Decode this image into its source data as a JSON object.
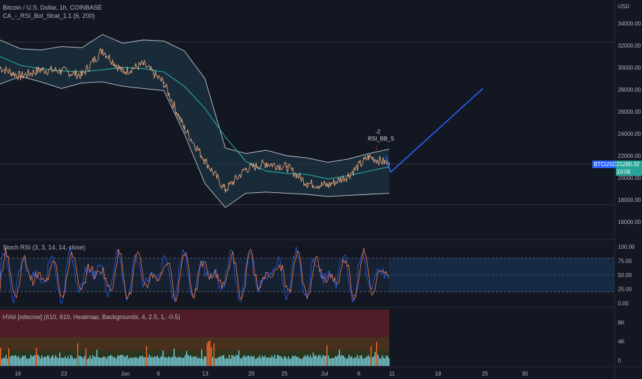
{
  "legend": {
    "symbol_line": "Bitcoin / U.S. Dollar, 1h, COINBASE",
    "strategy_line": "CA_-_RSI_Bol_Strat_1.1 (6, 200)"
  },
  "currency_label": "USD",
  "price_axis": [
    "34000.00",
    "32000.00",
    "30000.00",
    "28000.00",
    "26000.00",
    "24000.00",
    "22000.00",
    "20000.00",
    "18000.00",
    "16000.00"
  ],
  "ticker_tag": "BTCUSD",
  "price_tag": "21280.32",
  "countdown_tag": "10:08",
  "annotation": {
    "value": "-2",
    "label": "RSI_BB_S"
  },
  "stoch": {
    "title": "Stoch RSI (3, 3, 14, 14, close)",
    "axis": [
      "100.00",
      "75.00",
      "50.00",
      "25.00",
      "0.00"
    ]
  },
  "hvol": {
    "title": "HVol [xdecow] (610, 610, Heatmap, Backgrounds, 4, 2.5, 1, -0.5)",
    "axis": [
      "8K",
      "4K",
      "0"
    ]
  },
  "time_axis": [
    "16",
    "23",
    "Jun",
    "6",
    "13",
    "20",
    "25",
    "Jul",
    "6",
    "11",
    "18",
    "25",
    "30"
  ],
  "colors": {
    "background": "#131722",
    "band_fill": "#1f3a4a",
    "basis": "#26a69a",
    "price_line": "#e8a87c",
    "projection": "#2962ff",
    "stoch_k": "#2962ff",
    "stoch_d": "#ff7f50",
    "hvol_bars": "#7ad6e8"
  },
  "chart_data": {
    "type": "line",
    "title": "Bitcoin / U.S. Dollar, 1h, COINBASE",
    "xlabel": "",
    "ylabel": "USD",
    "ylim": [
      15000,
      35000
    ],
    "x_ticks": [
      "16",
      "23",
      "Jun",
      "6",
      "13",
      "20",
      "25",
      "Jul",
      "6",
      "11",
      "18",
      "25",
      "30"
    ],
    "series": [
      {
        "name": "BTCUSD",
        "x": [
          "May 12",
          "May 16",
          "May 20",
          "May 23",
          "May 27",
          "May 31",
          "Jun 4",
          "Jun 8",
          "Jun 11",
          "Jun 13",
          "Jun 15",
          "Jun 18",
          "Jun 21",
          "Jun 24",
          "Jun 27",
          "Jun 30",
          "Jul 3",
          "Jul 6",
          "Jul 8",
          "Jul 10"
        ],
        "values": [
          30000,
          29200,
          29800,
          29700,
          29300,
          31600,
          29600,
          30300,
          28600,
          24500,
          21600,
          18900,
          20800,
          21300,
          21000,
          19500,
          19300,
          20200,
          21900,
          21280
        ]
      }
    ],
    "bollinger_bands": {
      "basis": [
        31000,
        30200,
        29900,
        29700,
        29600,
        29800,
        30000,
        29900,
        29600,
        28300,
        26300,
        23700,
        21500,
        20600,
        20400,
        20300,
        19900,
        20200,
        20600,
        21000
      ],
      "upper": [
        32500,
        31700,
        31600,
        31900,
        31800,
        33000,
        32200,
        32500,
        32400,
        31500,
        29000,
        22700,
        22200,
        22500,
        22000,
        21800,
        21400,
        21700,
        22200,
        22600
      ],
      "lower": [
        28500,
        29200,
        28700,
        28100,
        28600,
        28700,
        28300,
        28100,
        27900,
        24000,
        19500,
        17300,
        18600,
        18700,
        18600,
        18500,
        18300,
        18400,
        18500,
        18600
      ]
    },
    "projection": {
      "from": [
        "Jul 11",
        20500
      ],
      "to": [
        "Jul 25",
        28100
      ]
    },
    "annotation": {
      "label": "RSI_BB_S",
      "value": -2,
      "date": "Jul 9"
    }
  }
}
